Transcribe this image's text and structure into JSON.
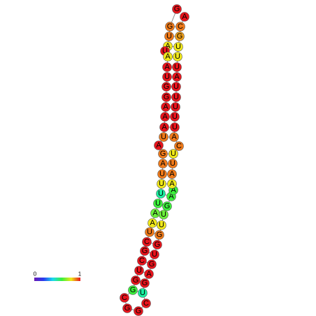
{
  "nodes": [
    {
      "base": "G",
      "color": "#e8141c"
    },
    {
      "base": "G",
      "color": "#f07a1a"
    },
    {
      "base": "U",
      "color": "#f07a1a"
    },
    {
      "base": "A",
      "color": "#f0e81a"
    },
    {
      "base": "U",
      "color": "#e8141c"
    },
    {
      "base": "A",
      "color": "#f0e81a"
    },
    {
      "base": "A",
      "color": "#e8141c"
    },
    {
      "base": "U",
      "color": "#e8141c"
    },
    {
      "base": "G",
      "color": "#e8141c"
    },
    {
      "base": "G",
      "color": "#e8141c"
    },
    {
      "base": "A",
      "color": "#e8141c"
    },
    {
      "base": "A",
      "color": "#e8141c"
    },
    {
      "base": "A",
      "color": "#e8141c"
    },
    {
      "base": "U",
      "color": "#f07a1a"
    },
    {
      "base": "A",
      "color": "#e8141c"
    },
    {
      "base": "G",
      "color": "#f07a1a"
    },
    {
      "base": "A",
      "color": "#f07a1a"
    },
    {
      "base": "U",
      "color": "#f07a1a"
    },
    {
      "base": "U",
      "color": "#f0e81a"
    },
    {
      "base": "U",
      "color": "#1af0a0"
    },
    {
      "base": "U",
      "color": "#3cf03c"
    },
    {
      "base": "A",
      "color": "#6cf03c"
    },
    {
      "base": "A",
      "color": "#f0e81a"
    },
    {
      "base": "U",
      "color": "#f07a1a"
    },
    {
      "base": "C",
      "color": "#e8141c"
    },
    {
      "base": "G",
      "color": "#e8141c"
    },
    {
      "base": "C",
      "color": "#e8141c"
    },
    {
      "base": "U",
      "color": "#e8141c"
    },
    {
      "base": "G",
      "color": "#e8141c"
    },
    {
      "base": "G",
      "color": "#3cf03c"
    },
    {
      "base": "C",
      "color": "#e8141c"
    },
    {
      "base": "G",
      "color": "#e8141c"
    },
    {
      "base": "G",
      "color": "#e8141c"
    },
    {
      "base": "C",
      "color": "#e8141c"
    },
    {
      "base": "U",
      "color": "#1af0a0"
    },
    {
      "base": "G",
      "color": "#e8141c"
    },
    {
      "base": "A",
      "color": "#e8141c"
    },
    {
      "base": "G",
      "color": "#e8141c"
    },
    {
      "base": "U",
      "color": "#e8141c"
    },
    {
      "base": "G",
      "color": "#e8141c"
    },
    {
      "base": "G",
      "color": "#f07a1a"
    },
    {
      "base": "U",
      "color": "#f0e81a"
    },
    {
      "base": "U",
      "color": "#6cf03c"
    },
    {
      "base": "G",
      "color": "#3cf03c"
    },
    {
      "base": "A",
      "color": "#3cf03c"
    },
    {
      "base": "A",
      "color": "#3cf03c"
    },
    {
      "base": "A",
      "color": "#f0e81a"
    },
    {
      "base": "A",
      "color": "#f07a1a"
    },
    {
      "base": "U",
      "color": "#f07a1a"
    },
    {
      "base": "U",
      "color": "#f0e81a"
    },
    {
      "base": "C",
      "color": "#f07a1a"
    },
    {
      "base": "A",
      "color": "#f07a1a"
    },
    {
      "base": "U",
      "color": "#e8141c"
    },
    {
      "base": "U",
      "color": "#e8141c"
    },
    {
      "base": "U",
      "color": "#e8141c"
    },
    {
      "base": "U",
      "color": "#e8141c"
    },
    {
      "base": "U",
      "color": "#e8141c"
    },
    {
      "base": "A",
      "color": "#e8141c"
    },
    {
      "base": "U",
      "color": "#e8141c"
    },
    {
      "base": "U",
      "color": "#f0e81a"
    },
    {
      "base": "U",
      "color": "#f0e81a"
    },
    {
      "base": "G",
      "color": "#f0a01a"
    },
    {
      "base": "C",
      "color": "#f07a1a"
    },
    {
      "base": "A",
      "color": "#e8141c"
    }
  ],
  "colorbar": {
    "min_label": "0",
    "max_label": "1"
  }
}
